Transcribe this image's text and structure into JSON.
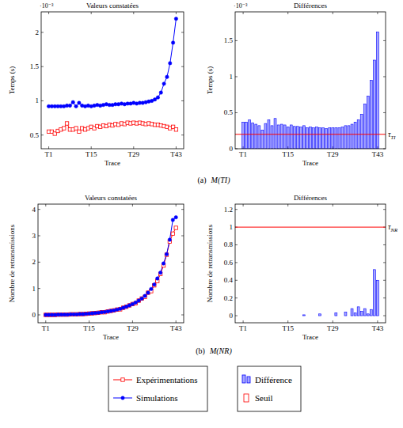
{
  "chart_data": [
    {
      "type": "line",
      "title": "Valeurs constatées",
      "x_label": "Trace",
      "y_label": "Temps (s)",
      "y_multiplier": "·10⁻³",
      "categories": [
        "T1",
        null,
        null,
        null,
        null,
        null,
        null,
        null,
        null,
        null,
        null,
        null,
        null,
        null,
        "T15",
        null,
        null,
        null,
        null,
        null,
        null,
        null,
        null,
        null,
        null,
        null,
        null,
        null,
        "T29",
        null,
        null,
        null,
        null,
        null,
        null,
        null,
        null,
        null,
        null,
        null,
        null,
        null,
        "T43"
      ],
      "ylim": [
        0.3,
        2.3
      ],
      "yticks": [
        0.5,
        1,
        1.5,
        2
      ],
      "legend": "bottom",
      "series": [
        {
          "name": "Expérimentations",
          "color": "#ff0000",
          "marker": "square",
          "line_style": "solid",
          "values": [
            0.55,
            0.55,
            0.52,
            0.56,
            0.58,
            0.6,
            0.67,
            0.58,
            0.58,
            0.6,
            0.55,
            0.6,
            0.58,
            0.6,
            0.62,
            0.6,
            0.63,
            0.62,
            0.64,
            0.63,
            0.65,
            0.64,
            0.66,
            0.65,
            0.67,
            0.66,
            0.68,
            0.67,
            0.68,
            0.67,
            0.68,
            0.67,
            0.66,
            0.67,
            0.66,
            0.65,
            0.65,
            0.64,
            0.63,
            0.62,
            0.6,
            0.62,
            0.58
          ]
        },
        {
          "name": "Simulations",
          "color": "#0000ff",
          "marker": "circle",
          "line_style": "solid",
          "values": [
            0.92,
            0.92,
            0.92,
            0.92,
            0.92,
            0.92,
            0.93,
            0.93,
            0.98,
            0.92,
            0.97,
            0.93,
            0.92,
            0.93,
            0.92,
            0.93,
            0.94,
            0.93,
            0.94,
            0.95,
            0.94,
            0.94,
            0.95,
            0.95,
            0.96,
            0.95,
            0.96,
            0.96,
            0.97,
            0.96,
            0.97,
            0.97,
            0.98,
            0.99,
            1,
            1.02,
            1.05,
            1.12,
            1.25,
            1.35,
            1.55,
            1.85,
            2.2
          ]
        }
      ]
    },
    {
      "type": "bar",
      "title": "Différences",
      "x_label": "Trace",
      "y_label": "Temps (s)",
      "y_multiplier": "·10⁻³",
      "categories": [
        "T1",
        null,
        null,
        null,
        null,
        null,
        null,
        null,
        null,
        null,
        null,
        null,
        null,
        null,
        "T15",
        null,
        null,
        null,
        null,
        null,
        null,
        null,
        null,
        null,
        null,
        null,
        null,
        null,
        "T29",
        null,
        null,
        null,
        null,
        null,
        null,
        null,
        null,
        null,
        null,
        null,
        null,
        null,
        "T43"
      ],
      "ylim": [
        0,
        1.9
      ],
      "yticks": [
        0,
        0.5,
        1,
        1.5
      ],
      "legend": "bottom",
      "threshold": {
        "name": "Seuil",
        "value": 0.2,
        "label": "τ",
        "label_sub": "TI",
        "color": "#ff0000"
      },
      "series": [
        {
          "name": "Différence",
          "color": "#0000ff",
          "values": [
            0.37,
            0.37,
            0.4,
            0.36,
            0.34,
            0.32,
            0.26,
            0.35,
            0.4,
            0.32,
            0.42,
            0.33,
            0.34,
            0.33,
            0.3,
            0.33,
            0.31,
            0.31,
            0.3,
            0.32,
            0.29,
            0.3,
            0.29,
            0.3,
            0.29,
            0.29,
            0.28,
            0.29,
            0.29,
            0.29,
            0.29,
            0.3,
            0.32,
            0.32,
            0.34,
            0.37,
            0.4,
            0.48,
            0.62,
            0.73,
            0.95,
            1.23,
            1.62
          ]
        }
      ]
    },
    {
      "type": "line",
      "title": "Valeurs constatées",
      "x_label": "Trace",
      "y_label": "Nombre de retransmissions",
      "categories": [
        "T1",
        null,
        null,
        null,
        null,
        null,
        null,
        null,
        null,
        null,
        null,
        null,
        null,
        null,
        "T15",
        null,
        null,
        null,
        null,
        null,
        null,
        null,
        null,
        null,
        null,
        null,
        null,
        null,
        "T29",
        null,
        null,
        null,
        null,
        null,
        null,
        null,
        null,
        null,
        null,
        null,
        null,
        null,
        "T43"
      ],
      "ylim": [
        -0.3,
        4.2
      ],
      "yticks": [
        0,
        1,
        2,
        3,
        4
      ],
      "series": [
        {
          "name": "Expérimentations",
          "color": "#ff0000",
          "marker": "square",
          "line_style": "solid",
          "values": [
            0,
            0,
            0,
            0,
            0.01,
            0.01,
            0.01,
            0.01,
            0.02,
            0.02,
            0.02,
            0.03,
            0.03,
            0.04,
            0.05,
            0.06,
            0.07,
            0.08,
            0.1,
            0.1,
            0.13,
            0.15,
            0.17,
            0.2,
            0.21,
            0.27,
            0.31,
            0.36,
            0.41,
            0.44,
            0.54,
            0.62,
            0.68,
            0.84,
            0.9,
            1.12,
            1.28,
            1.55,
            1.87,
            2.28,
            2.78,
            3.08,
            3.3
          ]
        },
        {
          "name": "Simulations",
          "color": "#0000ff",
          "marker": "circle",
          "line_style": "solid",
          "values": [
            0,
            0,
            0,
            0,
            0.01,
            0.01,
            0.01,
            0.01,
            0.02,
            0.02,
            0.02,
            0.03,
            0.03,
            0.04,
            0.05,
            0.06,
            0.07,
            0.08,
            0.1,
            0.11,
            0.13,
            0.15,
            0.17,
            0.2,
            0.23,
            0.27,
            0.31,
            0.36,
            0.41,
            0.47,
            0.54,
            0.62,
            0.72,
            0.84,
            0.98,
            1.15,
            1.38,
            1.6,
            1.95,
            2.3,
            2.85,
            3.6,
            3.7
          ]
        }
      ]
    },
    {
      "type": "bar",
      "title": "Différences",
      "x_label": "Trace",
      "y_label": "Nombre de retransmissions",
      "categories": [
        "T1",
        null,
        null,
        null,
        null,
        null,
        null,
        null,
        null,
        null,
        null,
        null,
        null,
        null,
        "T15",
        null,
        null,
        null,
        null,
        null,
        null,
        null,
        null,
        null,
        null,
        null,
        null,
        null,
        "T29",
        null,
        null,
        null,
        null,
        null,
        null,
        null,
        null,
        null,
        null,
        null,
        null,
        null,
        "T43"
      ],
      "ylim": [
        -0.08,
        1.26
      ],
      "yticks": [
        0,
        0.2,
        0.4,
        0.6,
        0.8,
        1,
        1.2
      ],
      "threshold": {
        "value": 1,
        "label": "τ",
        "label_sub": "NR",
        "color": "#ff0000"
      },
      "series": [
        {
          "name": "Différence",
          "color": "#0000ff",
          "values": [
            0,
            0,
            0,
            0,
            0,
            0,
            0,
            0,
            0,
            0,
            0,
            0,
            0,
            0,
            0,
            0,
            0,
            0,
            0,
            0.01,
            0,
            0,
            0,
            0,
            0.02,
            0,
            0,
            0,
            0,
            0.03,
            0,
            0,
            0.04,
            0,
            0.08,
            0.03,
            0.1,
            0.05,
            0.08,
            0.02,
            0.07,
            0.52,
            0.4
          ]
        }
      ]
    }
  ],
  "captions": [
    {
      "label": "(a)",
      "text": "M(TI)"
    },
    {
      "label": "(b)",
      "text": "M(NR)"
    }
  ]
}
